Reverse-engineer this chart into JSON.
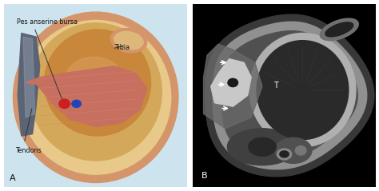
{
  "figure_width": 4.74,
  "figure_height": 2.39,
  "dpi": 100,
  "background_color": "#ffffff",
  "panel_a": {
    "bg_color": "#cde4ef",
    "label": "A",
    "text_pes": "Pes anserine bursa",
    "text_tibia": "Tibia",
    "text_tendons": "Tendons"
  },
  "panel_b": {
    "bg_color": "#000000",
    "label": "B",
    "text_T": "T"
  }
}
